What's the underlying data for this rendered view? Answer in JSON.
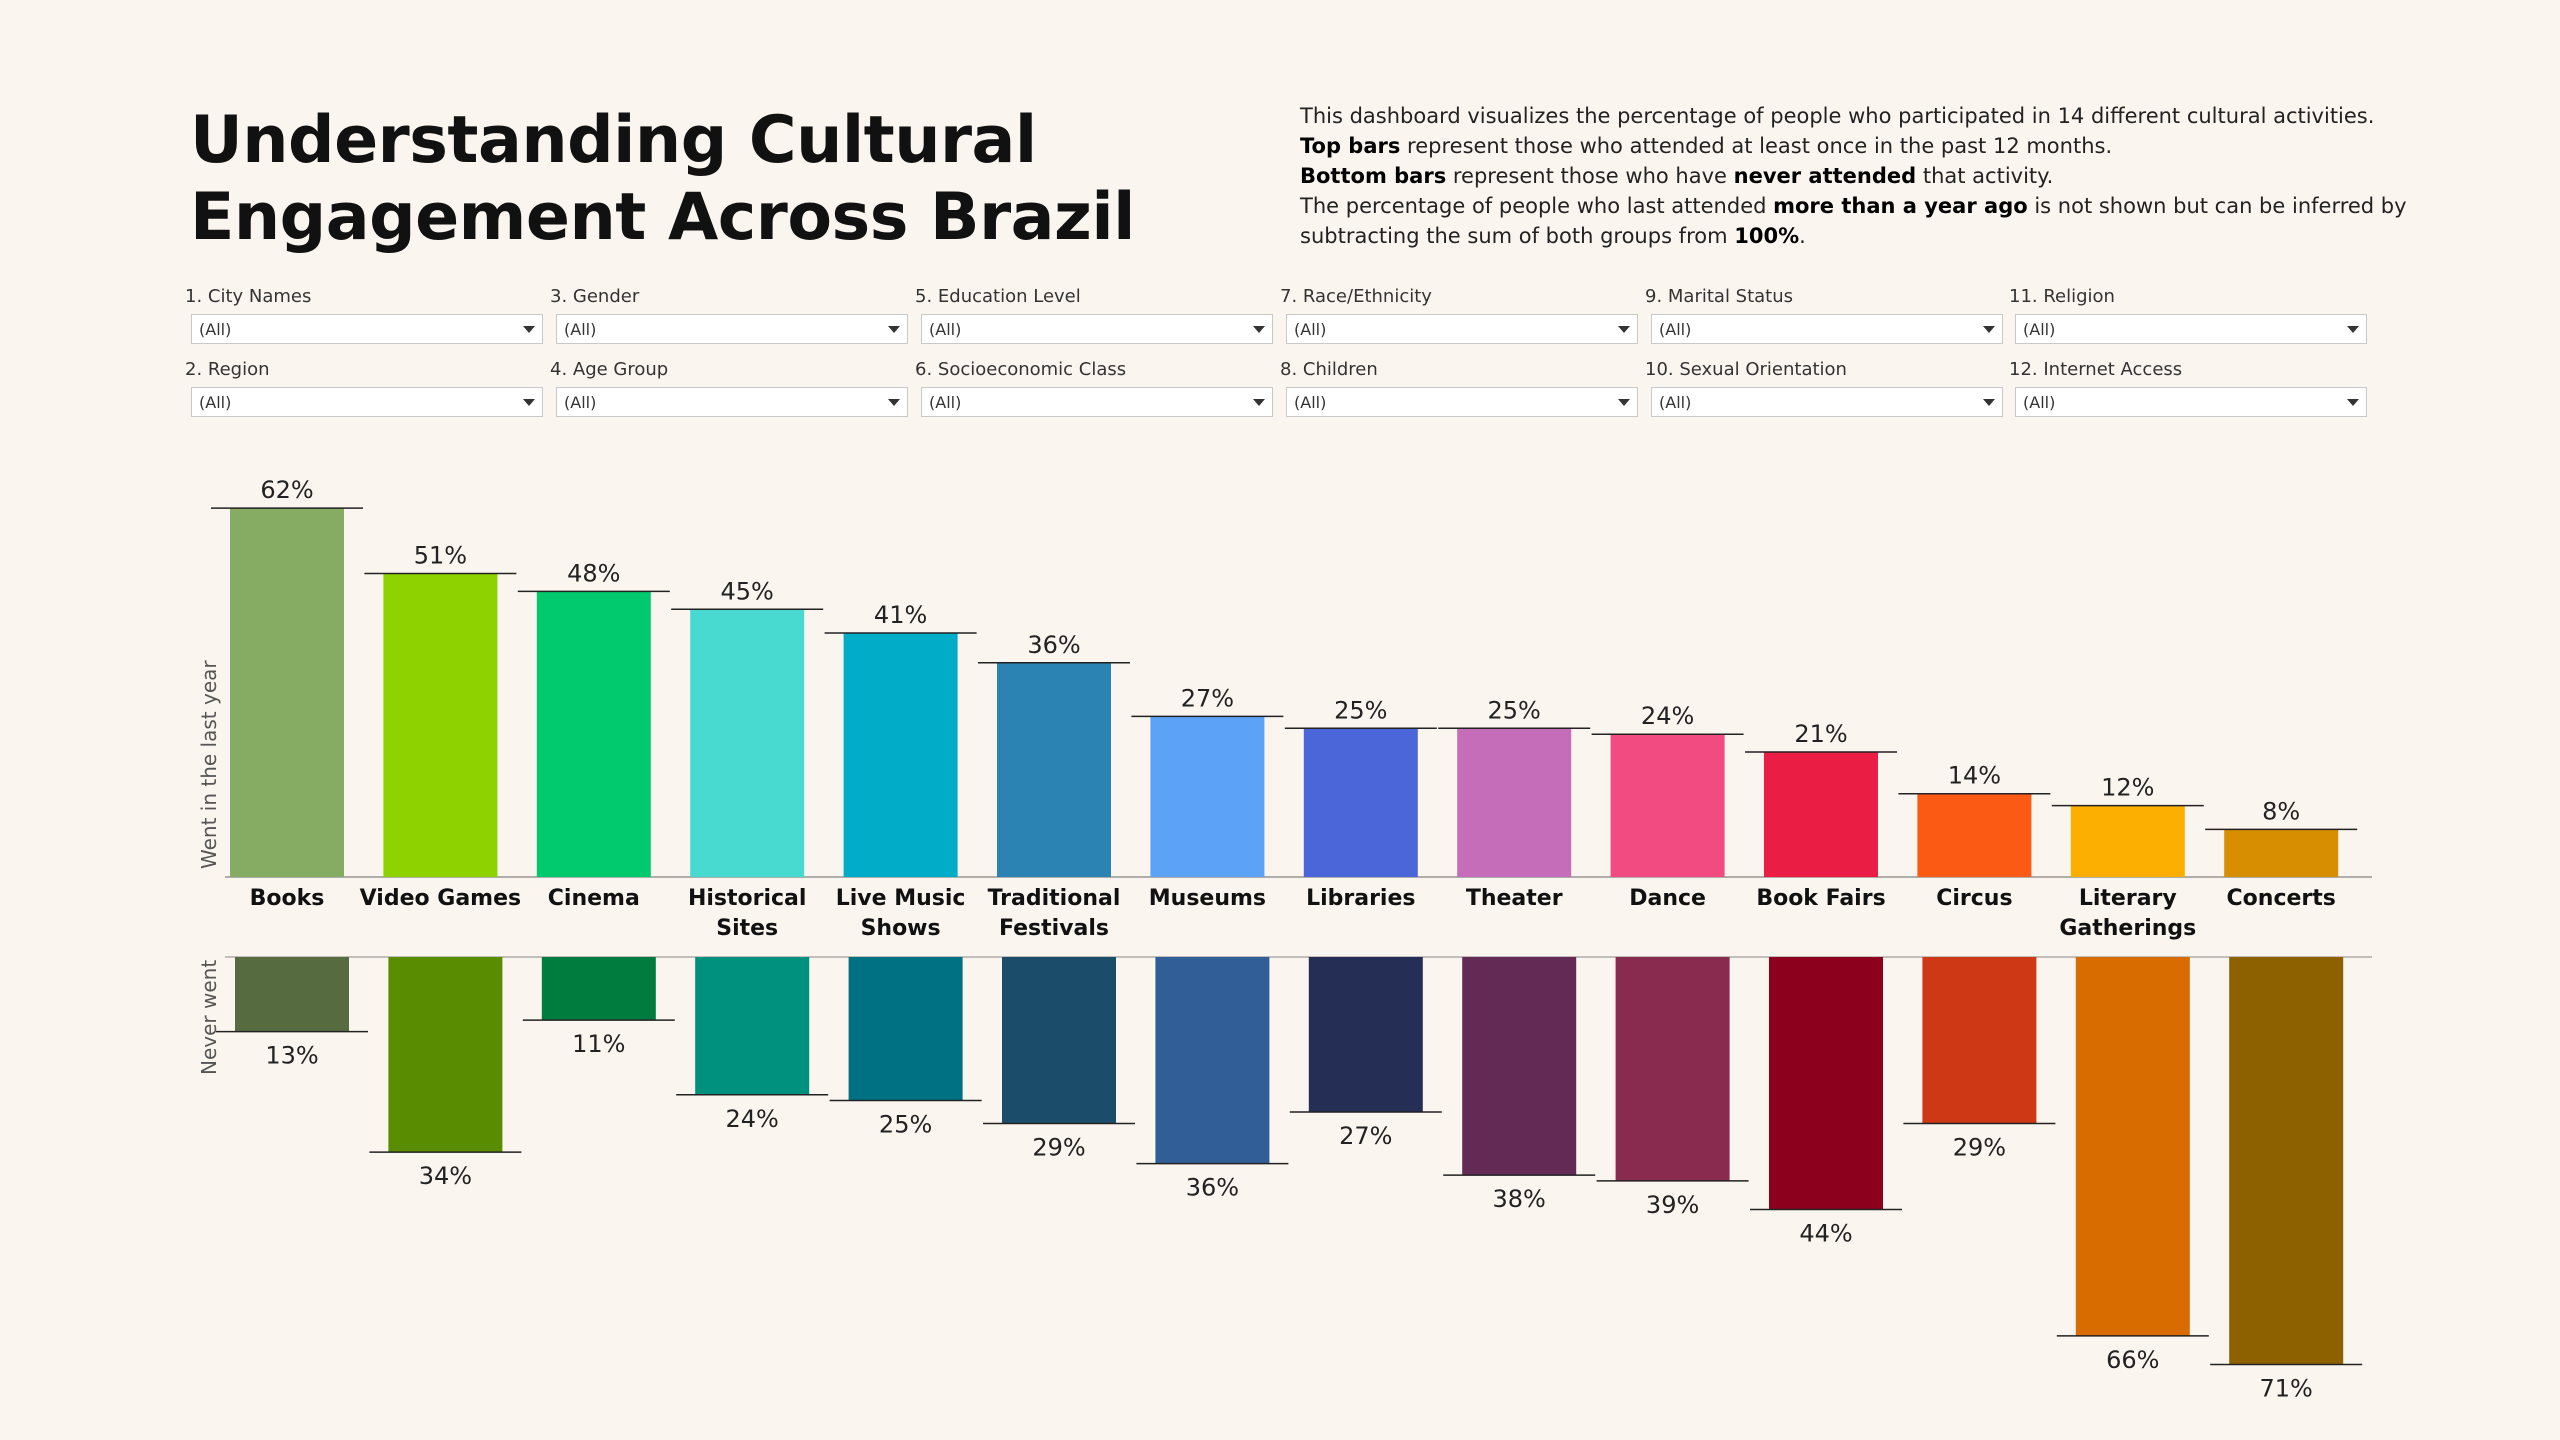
{
  "title": {
    "line1": "Understanding Cultural",
    "line2": "Engagement Across Brazil"
  },
  "description": {
    "line1": "This dashboard visualizes the percentage of people who participated in 14 different cultural activities.",
    "line2_bold": "Top bars",
    "line2_rest": " represent those who attended at least once in the past 12 months.",
    "line3_bold": "Bottom bars",
    "line3_mid": " represent those who have ",
    "line3_bold2": "never attended",
    "line3_rest": " that activity.",
    "line4_pre": "The percentage of people who last attended ",
    "line4_bold": "more than a year ago",
    "line4_rest": " is not shown but can be inferred by",
    "line5_pre": "subtracting the sum of both groups from ",
    "line5_bold": "100%",
    "line5_rest": "."
  },
  "filters": [
    {
      "label": "1. City Names",
      "value": "(All)"
    },
    {
      "label": "3. Gender",
      "value": "(All)"
    },
    {
      "label": "5. Education Level",
      "value": "(All)"
    },
    {
      "label": "7. Race/Ethnicity",
      "value": "(All)"
    },
    {
      "label": "9. Marital Status",
      "value": "(All)"
    },
    {
      "label": "11. Religion",
      "value": "(All)"
    },
    {
      "label": "2. Region",
      "value": "(All)"
    },
    {
      "label": "4. Age Group",
      "value": "(All)"
    },
    {
      "label": "6. Socioeconomic Class",
      "value": "(All)"
    },
    {
      "label": "8. Children",
      "value": "(All)"
    },
    {
      "label": "10. Sexual Orientation",
      "value": "(All)"
    },
    {
      "label": "12. Internet Access",
      "value": "(All)"
    }
  ],
  "chart_data": {
    "type": "bar",
    "categories": [
      "Books",
      "Video Games",
      "Cinema",
      "Historical Sites",
      "Live Music Shows",
      "Traditional Festivals",
      "Museums",
      "Libraries",
      "Theater",
      "Dance",
      "Book Fairs",
      "Circus",
      "Literary Gatherings",
      "Concerts"
    ],
    "category_lines": [
      [
        "Books"
      ],
      [
        "Video Games"
      ],
      [
        "Cinema"
      ],
      [
        "Historical",
        "Sites"
      ],
      [
        "Live Music",
        "Shows"
      ],
      [
        "Traditional",
        "Festivals"
      ],
      [
        "Museums"
      ],
      [
        "Libraries"
      ],
      [
        "Theater"
      ],
      [
        "Dance"
      ],
      [
        "Book Fairs"
      ],
      [
        "Circus"
      ],
      [
        "Literary",
        "Gatherings"
      ],
      [
        "Concerts"
      ]
    ],
    "series": [
      {
        "name": "Went in the last year",
        "values": [
          62,
          51,
          48,
          45,
          41,
          36,
          27,
          25,
          25,
          24,
          21,
          14,
          12,
          8
        ],
        "colors": [
          "#86ab62",
          "#8ed200",
          "#00c96e",
          "#48d9d0",
          "#00acc8",
          "#2b83b3",
          "#5ca3f8",
          "#4a66d8",
          "#c56db8",
          "#f24b81",
          "#ea1e44",
          "#fb5a15",
          "#fdaf00",
          "#d78e00"
        ]
      },
      {
        "name": "Never went",
        "values": [
          13,
          34,
          11,
          24,
          25,
          29,
          36,
          27,
          38,
          39,
          44,
          29,
          66,
          71
        ],
        "colors": [
          "#566c40",
          "#5a8c00",
          "#007d3e",
          "#00917e",
          "#007183",
          "#1b4c69",
          "#325e98",
          "#252f55",
          "#632a55",
          "#892a4f",
          "#8c001d",
          "#cf3814",
          "#d86c00",
          "#8e6100"
        ]
      }
    ],
    "value_suffix": "%"
  }
}
